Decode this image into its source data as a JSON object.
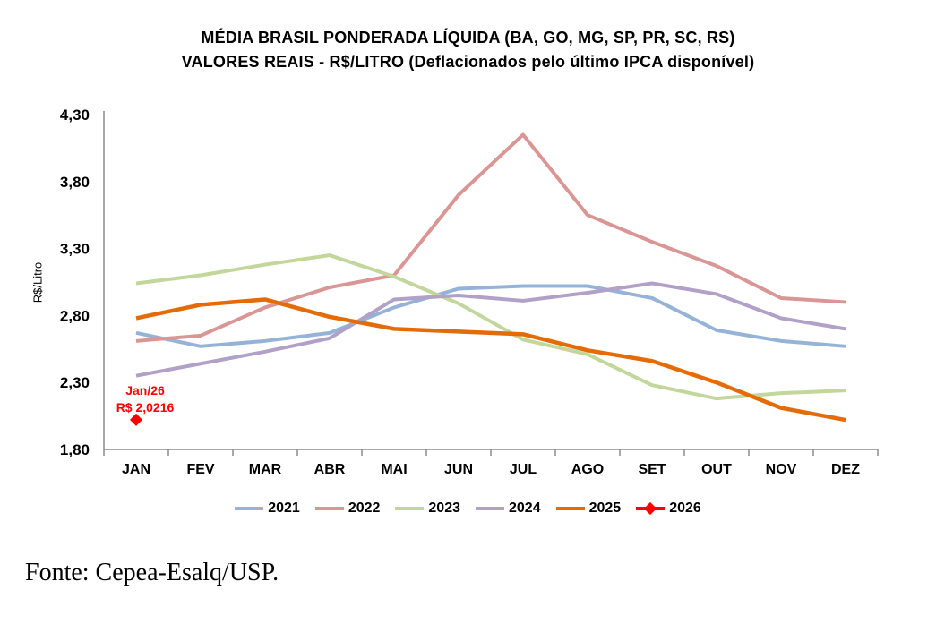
{
  "title": {
    "line1": "MÉDIA BRASIL PONDERADA LÍQUIDA (BA, GO, MG, SP, PR, SC, RS)",
    "line2": "VALORES REAIS - R$/LITRO (Deflacionados pelo último IPCA disponível)"
  },
  "annotation": {
    "line1": "Jan/26",
    "line2": "R$ 2,0216",
    "color": "#FF0000"
  },
  "fonte": {
    "text": "Fonte: Cepea-Esalq/USP."
  },
  "axis_color": "#8C8C8C",
  "chart_data": {
    "type": "line",
    "title": "MÉDIA BRASIL PONDERADA LÍQUIDA (BA, GO, MG, SP, PR, SC, RS) — VALORES REAIS - R$/LITRO (Deflacionados pelo último IPCA disponível)",
    "ylabel": "R$/Litro",
    "ylim": [
      1.8,
      4.3
    ],
    "yticks": [
      "4,30",
      "3,80",
      "3,30",
      "2,80",
      "2,30",
      "1,80"
    ],
    "grid": false,
    "legend_position": "bottom",
    "categories": [
      "JAN",
      "FEV",
      "MAR",
      "ABR",
      "MAI",
      "JUN",
      "JUL",
      "AGO",
      "SET",
      "OUT",
      "NOV",
      "DEZ"
    ],
    "series": [
      {
        "name": "2021",
        "color": "#95B3D7",
        "marker": "none",
        "values": [
          2.67,
          2.57,
          2.61,
          2.67,
          2.86,
          3.0,
          3.02,
          3.02,
          2.93,
          2.69,
          2.61,
          2.57
        ]
      },
      {
        "name": "2022",
        "color": "#D99694",
        "marker": "none",
        "values": [
          2.61,
          2.65,
          2.86,
          3.01,
          3.1,
          3.7,
          4.15,
          3.55,
          3.35,
          3.17,
          2.93,
          2.9
        ]
      },
      {
        "name": "2023",
        "color": "#C3D69B",
        "marker": "none",
        "values": [
          3.04,
          3.1,
          3.18,
          3.25,
          3.09,
          2.89,
          2.62,
          2.51,
          2.28,
          2.18,
          2.22,
          2.24
        ]
      },
      {
        "name": "2024",
        "color": "#B1A0C7",
        "marker": "none",
        "values": [
          2.35,
          2.44,
          2.53,
          2.63,
          2.92,
          2.95,
          2.91,
          2.97,
          3.04,
          2.96,
          2.78,
          2.7
        ]
      },
      {
        "name": "2025",
        "color": "#E36C09",
        "marker": "none",
        "values": [
          2.78,
          2.88,
          2.92,
          2.79,
          2.7,
          2.68,
          2.66,
          2.54,
          2.46,
          2.3,
          2.11,
          2.02
        ]
      },
      {
        "name": "2026",
        "color": "#FF0000",
        "marker": "diamond",
        "annotation": "Jan/26 R$ 2,0216",
        "values": [
          2.0216,
          null,
          null,
          null,
          null,
          null,
          null,
          null,
          null,
          null,
          null,
          null
        ]
      }
    ]
  }
}
